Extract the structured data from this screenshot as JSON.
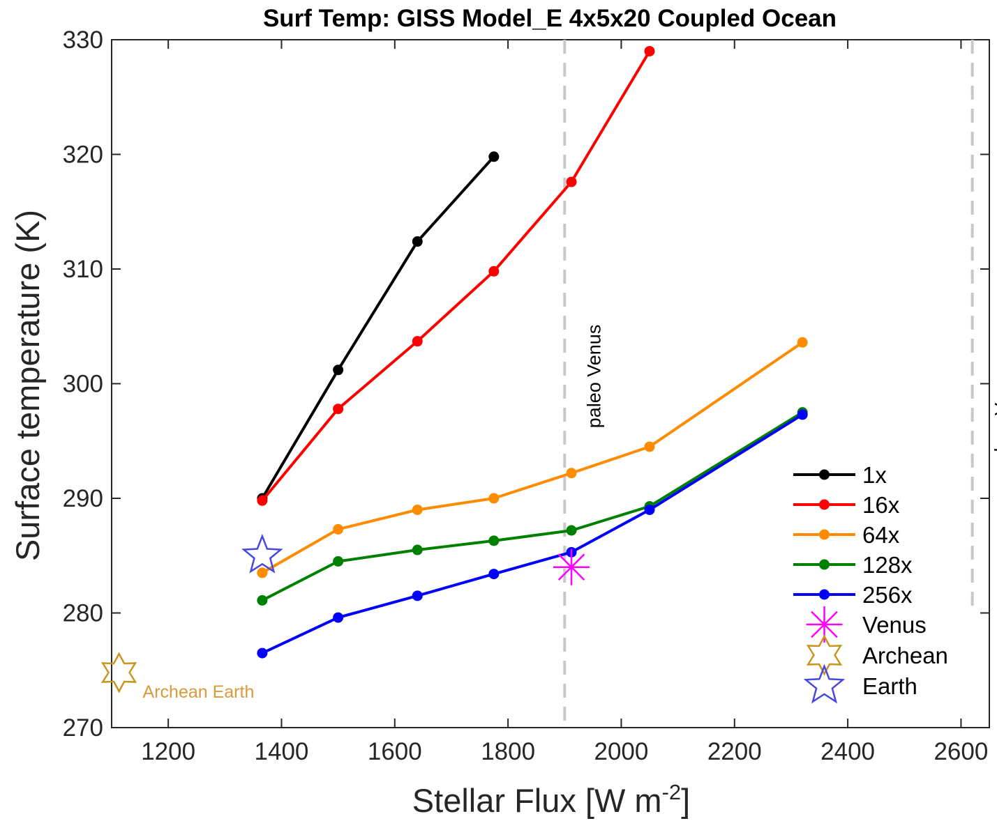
{
  "chart_data": {
    "type": "line",
    "title": "Surf Temp: GISS Model_E 4x5x20 Coupled Ocean",
    "xlabel": "Stellar Flux [W m",
    "xlabel_sup": "-2",
    "xlabel_end": "]",
    "ylabel": "Surface temperature (K)",
    "xlim": [
      1100,
      2650
    ],
    "ylim": [
      270,
      330
    ],
    "xticks": [
      1200,
      1400,
      1600,
      1800,
      2000,
      2200,
      2400,
      2600
    ],
    "yticks": [
      270,
      280,
      290,
      300,
      310,
      320,
      330
    ],
    "grid": false,
    "legend_position": "lower-right",
    "colors": {
      "1x": "#000000",
      "16x": "#ff0000",
      "64x": "#ff8c00",
      "128x": "#008000",
      "256x": "#0000ff",
      "Venus": "#ff00ff",
      "Archean": "#c8961e",
      "Earth": "#4848e0",
      "vline": "#c8c8c8"
    },
    "series": [
      {
        "name": "1x",
        "x": [
          1366,
          1500,
          1640,
          1775
        ],
        "y": [
          290.0,
          301.2,
          312.4,
          319.8
        ]
      },
      {
        "name": "16x",
        "x": [
          1366,
          1500,
          1640,
          1775,
          1912,
          2050
        ],
        "y": [
          289.8,
          297.8,
          303.7,
          309.8,
          317.6,
          329.0
        ]
      },
      {
        "name": "64x",
        "x": [
          1366,
          1500,
          1640,
          1775,
          1912,
          2050,
          2320
        ],
        "y": [
          283.5,
          287.3,
          289.0,
          290.0,
          292.2,
          294.5,
          303.6
        ]
      },
      {
        "name": "128x",
        "x": [
          1366,
          1500,
          1640,
          1775,
          1912,
          2050,
          2320
        ],
        "y": [
          281.1,
          284.5,
          285.5,
          286.3,
          287.2,
          289.3,
          297.5
        ]
      },
      {
        "name": "256x",
        "x": [
          1366,
          1500,
          1640,
          1775,
          1912,
          2050,
          2320
        ],
        "y": [
          276.5,
          279.6,
          281.5,
          283.4,
          285.3,
          289.0,
          297.3
        ]
      }
    ],
    "markers": [
      {
        "name": "Venus",
        "shape": "asterisk",
        "x": 1912,
        "y": 284.0
      },
      {
        "name": "Archean",
        "shape": "hexagram",
        "x": 1113,
        "y": 274.8,
        "label": "Archean Earth"
      },
      {
        "name": "Earth",
        "shape": "pentagram",
        "x": 1366,
        "y": 285.0
      }
    ],
    "vlines": [
      {
        "x": 1900,
        "label": "paleo Venus",
        "y_from": 270,
        "y_to": 330
      },
      {
        "x": 2620,
        "label": "modern Venus",
        "y_from": 280,
        "y_to": 330
      }
    ],
    "legend": [
      "1x",
      "16x",
      "64x",
      "128x",
      "256x",
      "Venus",
      "Archean",
      "Earth"
    ]
  }
}
